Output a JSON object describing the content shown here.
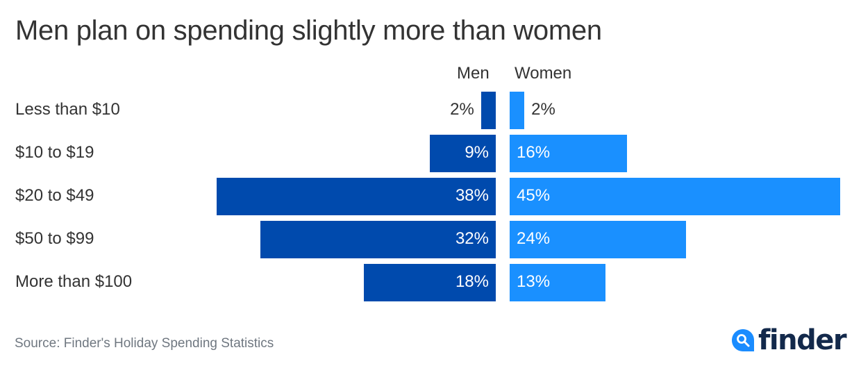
{
  "title": "Men plan on spending slightly more than women",
  "source": "Source: Finder's Holiday Spending Statistics",
  "logo": {
    "name": "finder",
    "icon": "search-drop-icon"
  },
  "colors": {
    "men": "#004aad",
    "women": "#1a90ff",
    "text": "#333333",
    "source": "#6f7780",
    "logo_text": "#13294b"
  },
  "chart_data": {
    "type": "bar",
    "orientation": "horizontal-diverging",
    "title": "Men plan on spending slightly more than women",
    "categories": [
      "Less than $10",
      "$10 to $19",
      "$20 to $49",
      "$50 to $99",
      "More than $100"
    ],
    "series": [
      {
        "name": "Men",
        "values": [
          2,
          9,
          38,
          32,
          18
        ],
        "labels": [
          "2%",
          "9%",
          "38%",
          "32%",
          "18%"
        ],
        "color": "#004aad"
      },
      {
        "name": "Women",
        "values": [
          2,
          16,
          45,
          24,
          13
        ],
        "labels": [
          "2%",
          "16%",
          "45%",
          "24%",
          "13%"
        ],
        "color": "#1a90ff"
      }
    ],
    "xlabel": "",
    "ylabel": "",
    "unit": "%",
    "grid": false,
    "legend": "top-center"
  }
}
